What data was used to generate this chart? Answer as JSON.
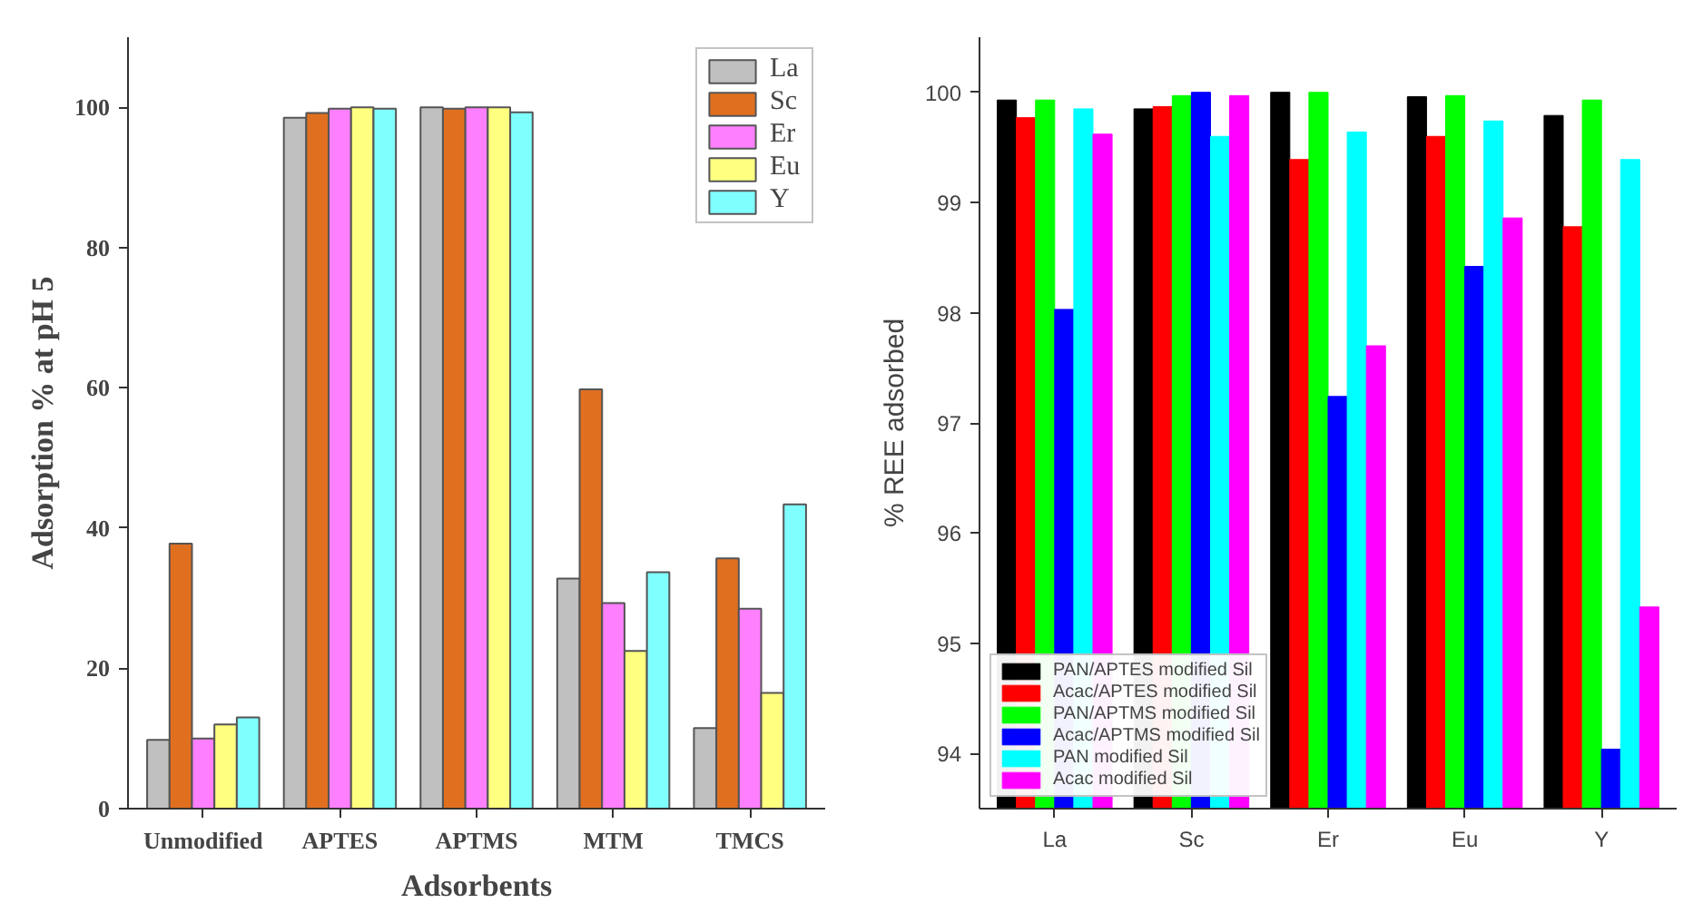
{
  "chart_data": [
    {
      "type": "bar",
      "ylabel": "Adsorption % at pH 5",
      "xlabel": "Adsorbents",
      "categories": [
        "Unmodified",
        "APTES",
        "APTMS",
        "MTM",
        "TMCS"
      ],
      "ylim": [
        0,
        110
      ],
      "yticks": [
        0,
        20,
        40,
        60,
        80,
        100
      ],
      "grid": false,
      "legend": "top right",
      "series": [
        {
          "name": "La",
          "color": "#c0c0c0",
          "values": [
            9.8,
            98.5,
            100,
            32.8,
            11.5
          ]
        },
        {
          "name": "Sc",
          "color": "#e07020",
          "values": [
            37.8,
            99.2,
            99.8,
            59.8,
            35.7
          ]
        },
        {
          "name": "Er",
          "color": "#ff80ff",
          "values": [
            10,
            99.8,
            100,
            29.3,
            28.5
          ]
        },
        {
          "name": "Eu",
          "color": "#ffff80",
          "values": [
            12,
            100,
            100,
            22.5,
            16.5
          ]
        },
        {
          "name": "Y",
          "color": "#80ffff",
          "values": [
            13,
            99.8,
            99.3,
            33.7,
            43.4
          ]
        }
      ]
    },
    {
      "type": "bar",
      "ylabel": "% REE adsorbed",
      "categories": [
        "La",
        "Sc",
        "Er",
        "Eu",
        "Y"
      ],
      "ylim": [
        93.5,
        100.5
      ],
      "yticks": [
        94,
        95,
        96,
        97,
        98,
        99,
        100
      ],
      "grid": false,
      "legend": "bottom left",
      "series": [
        {
          "name": "PAN/APTES modified Sil",
          "color": "#000000",
          "values": [
            99.93,
            99.85,
            100,
            99.96,
            99.79
          ]
        },
        {
          "name": "Acac/APTES modified Sil",
          "color": "#ff0000",
          "values": [
            99.77,
            99.87,
            99.39,
            99.6,
            98.78
          ]
        },
        {
          "name": "PAN/APTMS modified Sil",
          "color": "#00ff00",
          "values": [
            99.93,
            99.97,
            100,
            99.97,
            99.93
          ]
        },
        {
          "name": "Acac/APTMS modified Sil",
          "color": "#0000ff",
          "values": [
            98.03,
            100,
            97.24,
            98.42,
            94.04
          ]
        },
        {
          "name": "PAN modified Sil",
          "color": "#00ffff",
          "values": [
            99.85,
            99.6,
            99.64,
            99.74,
            99.39
          ]
        },
        {
          "name": "Acac modified Sil",
          "color": "#ff00ff",
          "values": [
            99.62,
            99.97,
            97.7,
            98.86,
            95.33
          ]
        }
      ]
    }
  ]
}
